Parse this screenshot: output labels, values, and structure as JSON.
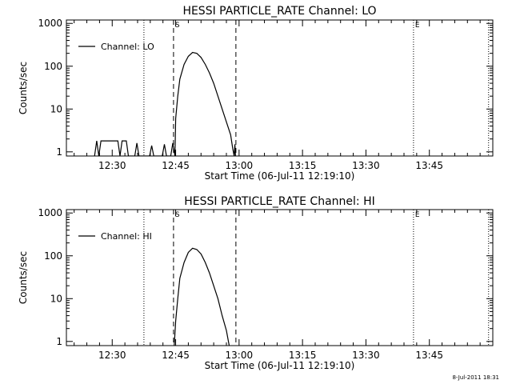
{
  "chart_data": [
    {
      "type": "line",
      "title": "HESSI PARTICLE_RATE Channel: LO",
      "xlabel": "Start Time (06-Jul-11 12:19:10)",
      "ylabel": "Counts/sec",
      "yscale": "log",
      "ylim": [
        0.8,
        1200
      ],
      "xlim": [
        "12:19:10",
        "14:00:00"
      ],
      "xticks": [
        "12:30",
        "12:45",
        "13:00",
        "13:15",
        "13:30",
        "13:45"
      ],
      "yticks": [
        "1",
        "10",
        "100",
        "1000"
      ],
      "legend": {
        "label": "Channel: LO",
        "placement": "top-left"
      },
      "markers": [
        {
          "label": "S",
          "time": "12:44:30",
          "style": "dashed"
        },
        {
          "time": "12:59:15",
          "style": "dashed"
        },
        {
          "label": "E",
          "time": "13:41:15",
          "style": "dotted"
        },
        {
          "time": "12:37:30",
          "style": "dotted"
        },
        {
          "time": "13:59:00",
          "style": "dotted"
        }
      ],
      "series": [
        {
          "name": "Channel: LO",
          "points": [
            [
              "12:25:50",
              0.8
            ],
            [
              "12:26:20",
              1.8
            ],
            [
              "12:26:50",
              0.8
            ],
            [
              "12:27:20",
              1.8
            ],
            [
              "12:31:20",
              1.8
            ],
            [
              "12:31:50",
              0.8
            ],
            [
              "12:32:20",
              1.8
            ],
            [
              "12:33:20",
              1.8
            ],
            [
              "12:33:50",
              0.8
            ],
            [
              "12:35:20",
              0.8
            ],
            [
              "12:35:50",
              1.6
            ],
            [
              "12:36:20",
              0.8
            ],
            [
              "12:38:50",
              0.8
            ],
            [
              "12:39:20",
              1.4
            ],
            [
              "12:39:50",
              0.8
            ],
            [
              "12:41:50",
              0.8
            ],
            [
              "12:42:20",
              1.5
            ],
            [
              "12:42:50",
              0.8
            ],
            [
              "12:43:50",
              0.8
            ],
            [
              "12:44:20",
              1.6
            ],
            [
              "12:44:50",
              0.8
            ],
            [
              "12:45:00",
              6
            ],
            [
              "12:45:30",
              20
            ],
            [
              "12:46:00",
              50
            ],
            [
              "12:47:00",
              110
            ],
            [
              "12:48:00",
              170
            ],
            [
              "12:49:00",
              210
            ],
            [
              "12:50:00",
              200
            ],
            [
              "12:51:00",
              160
            ],
            [
              "12:52:00",
              110
            ],
            [
              "12:53:00",
              70
            ],
            [
              "12:54:00",
              40
            ],
            [
              "12:55:00",
              20
            ],
            [
              "12:56:00",
              10
            ],
            [
              "12:57:00",
              5
            ],
            [
              "12:58:00",
              2.5
            ],
            [
              "12:58:30",
              1.2
            ],
            [
              "12:58:50",
              0.8
            ],
            [
              "12:59:00",
              1.5
            ],
            [
              "12:59:10",
              0.8
            ]
          ]
        }
      ]
    },
    {
      "type": "line",
      "title": "HESSI PARTICLE_RATE Channel: HI",
      "xlabel": "Start Time (06-Jul-11 12:19:10)",
      "ylabel": "Counts/sec",
      "yscale": "log",
      "ylim": [
        0.8,
        1200
      ],
      "xlim": [
        "12:19:10",
        "14:00:00"
      ],
      "xticks": [
        "12:30",
        "12:45",
        "13:00",
        "13:15",
        "13:30",
        "13:45"
      ],
      "yticks": [
        "1",
        "10",
        "100",
        "1000"
      ],
      "legend": {
        "label": "Channel: HI",
        "placement": "top-left"
      },
      "markers": [
        {
          "label": "S",
          "time": "12:44:30",
          "style": "dashed"
        },
        {
          "time": "12:59:15",
          "style": "dashed"
        },
        {
          "label": "E",
          "time": "13:41:15",
          "style": "dotted"
        },
        {
          "time": "12:37:30",
          "style": "dotted"
        },
        {
          "time": "13:59:00",
          "style": "dotted"
        }
      ],
      "series": [
        {
          "name": "Channel: HI",
          "points": [
            [
              "12:44:40",
              0.8
            ],
            [
              "12:45:00",
              3
            ],
            [
              "12:45:30",
              10
            ],
            [
              "12:46:00",
              30
            ],
            [
              "12:47:00",
              70
            ],
            [
              "12:48:00",
              120
            ],
            [
              "12:49:00",
              150
            ],
            [
              "12:50:00",
              140
            ],
            [
              "12:51:00",
              110
            ],
            [
              "12:52:00",
              70
            ],
            [
              "12:53:00",
              40
            ],
            [
              "12:54:00",
              20
            ],
            [
              "12:55:00",
              10
            ],
            [
              "12:56:00",
              4
            ],
            [
              "12:57:00",
              1.8
            ],
            [
              "12:57:40",
              0.8
            ]
          ]
        }
      ]
    }
  ],
  "footer": {
    "timestamp": "8-Jul-2011 18:31"
  }
}
